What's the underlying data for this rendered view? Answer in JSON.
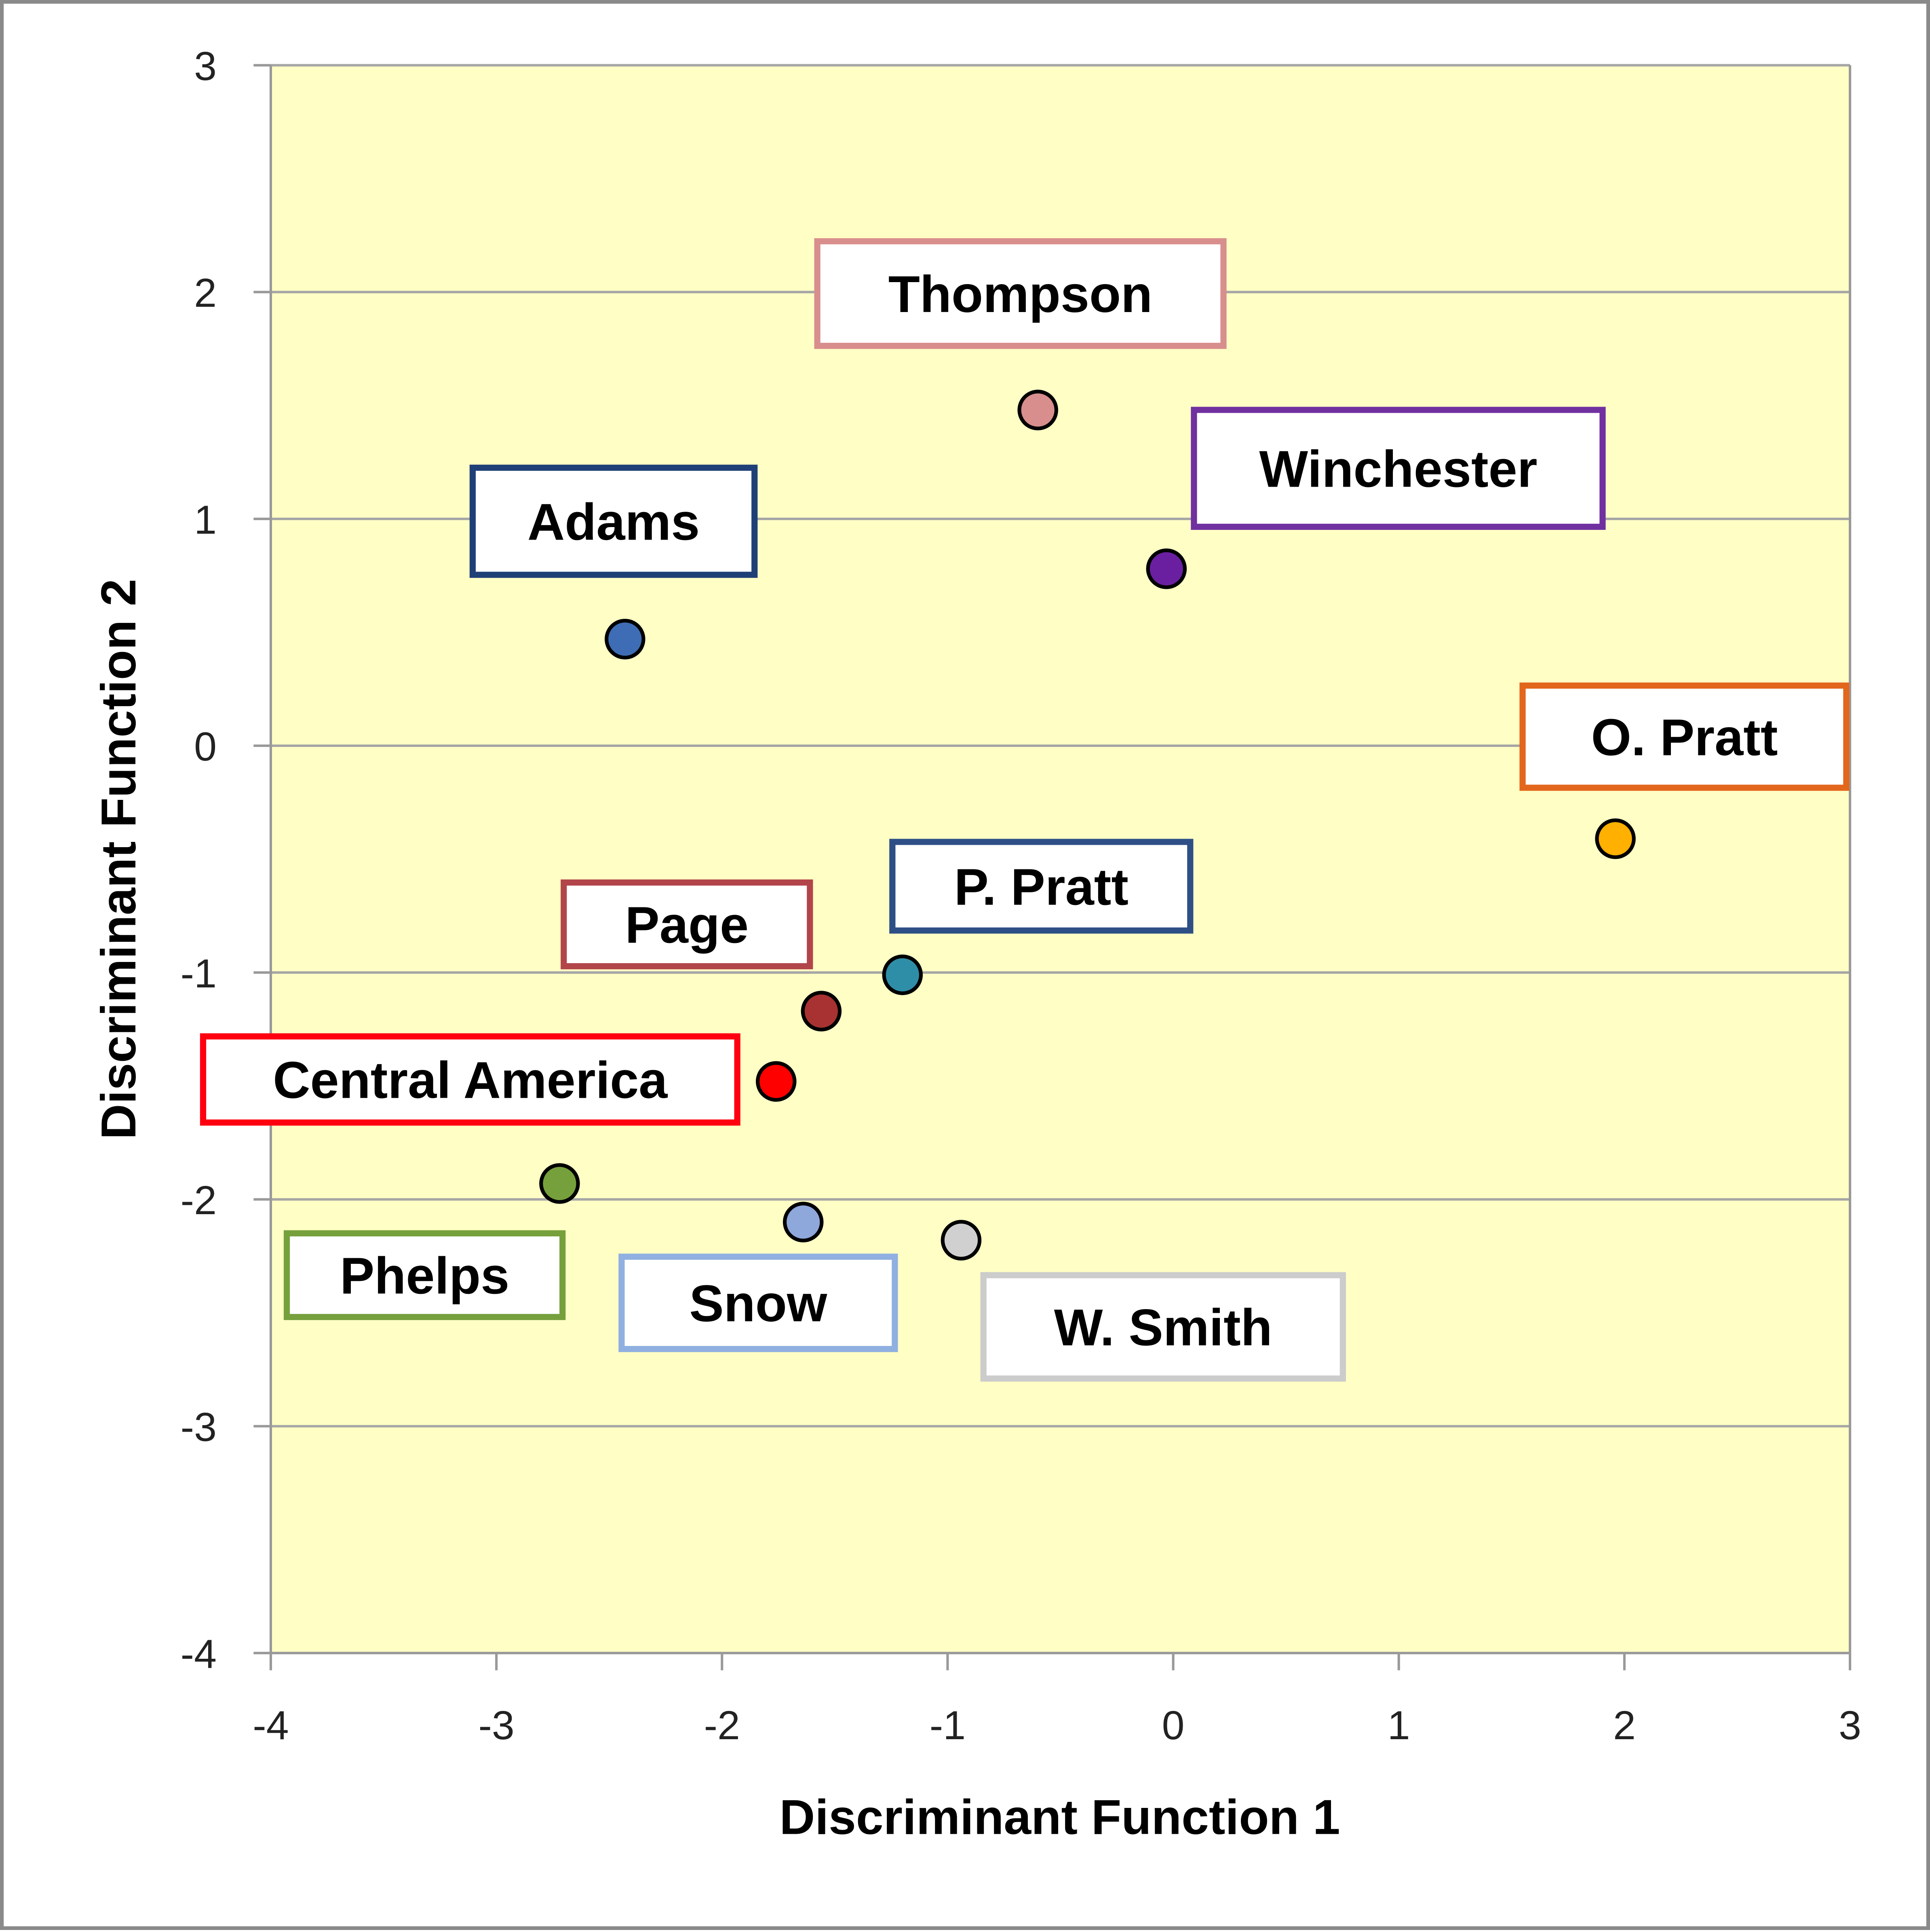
{
  "chart_data": {
    "type": "scatter",
    "title": "",
    "xlabel": "Discriminant Function 1",
    "ylabel": "Discriminant Function 2",
    "xlim": [
      -4,
      3
    ],
    "ylim": [
      -4,
      3
    ],
    "x_ticks": [
      -4,
      -3,
      -2,
      -1,
      0,
      1,
      2,
      3
    ],
    "y_ticks": [
      3,
      2,
      1,
      0,
      -1,
      -2,
      -3,
      -4
    ],
    "x_tick_labels": [
      "-4",
      "-3",
      "-2",
      "-1",
      "0",
      "1",
      "2",
      "3"
    ],
    "y_tick_labels": [
      "3",
      "2",
      "1",
      "0",
      "-1",
      "-2",
      "-3",
      "-4"
    ],
    "grid": "horizontal",
    "plot_background": "#FFFFC5",
    "points": [
      {
        "label": "Thompson",
        "x": -0.6,
        "y": 1.48,
        "color": "#D88E8C",
        "label_border": "#D88E8C"
      },
      {
        "label": "Winchester",
        "x": -0.03,
        "y": 0.78,
        "color": "#6A1FA0",
        "label_border": "#7030A0"
      },
      {
        "label": "Adams",
        "x": -2.43,
        "y": 0.47,
        "color": "#3E6DB5",
        "label_border": "#1F3F77"
      },
      {
        "label": "O. Pratt",
        "x": 1.96,
        "y": -0.41,
        "color": "#FFB000",
        "label_border": "#E2661C"
      },
      {
        "label": "P. Pratt",
        "x": -1.2,
        "y": -1.01,
        "color": "#2E8EA8",
        "label_border": "#2E4F86"
      },
      {
        "label": "Page",
        "x": -1.56,
        "y": -1.17,
        "color": "#A83232",
        "label_border": "#B2454A"
      },
      {
        "label": "Central America",
        "x": -1.76,
        "y": -1.48,
        "color": "#FF0000",
        "label_border": "#FF0010"
      },
      {
        "label": "Phelps",
        "x": -2.72,
        "y": -1.93,
        "color": "#76A03C",
        "label_border": "#76A03C"
      },
      {
        "label": "Snow",
        "x": -1.64,
        "y": -2.1,
        "color": "#8FA8DC",
        "label_border": "#8FB0E0"
      },
      {
        "label": "W. Smith",
        "x": -0.94,
        "y": -2.18,
        "color": "#D0D0D0",
        "label_border": "#CCCCCC"
      }
    ]
  }
}
